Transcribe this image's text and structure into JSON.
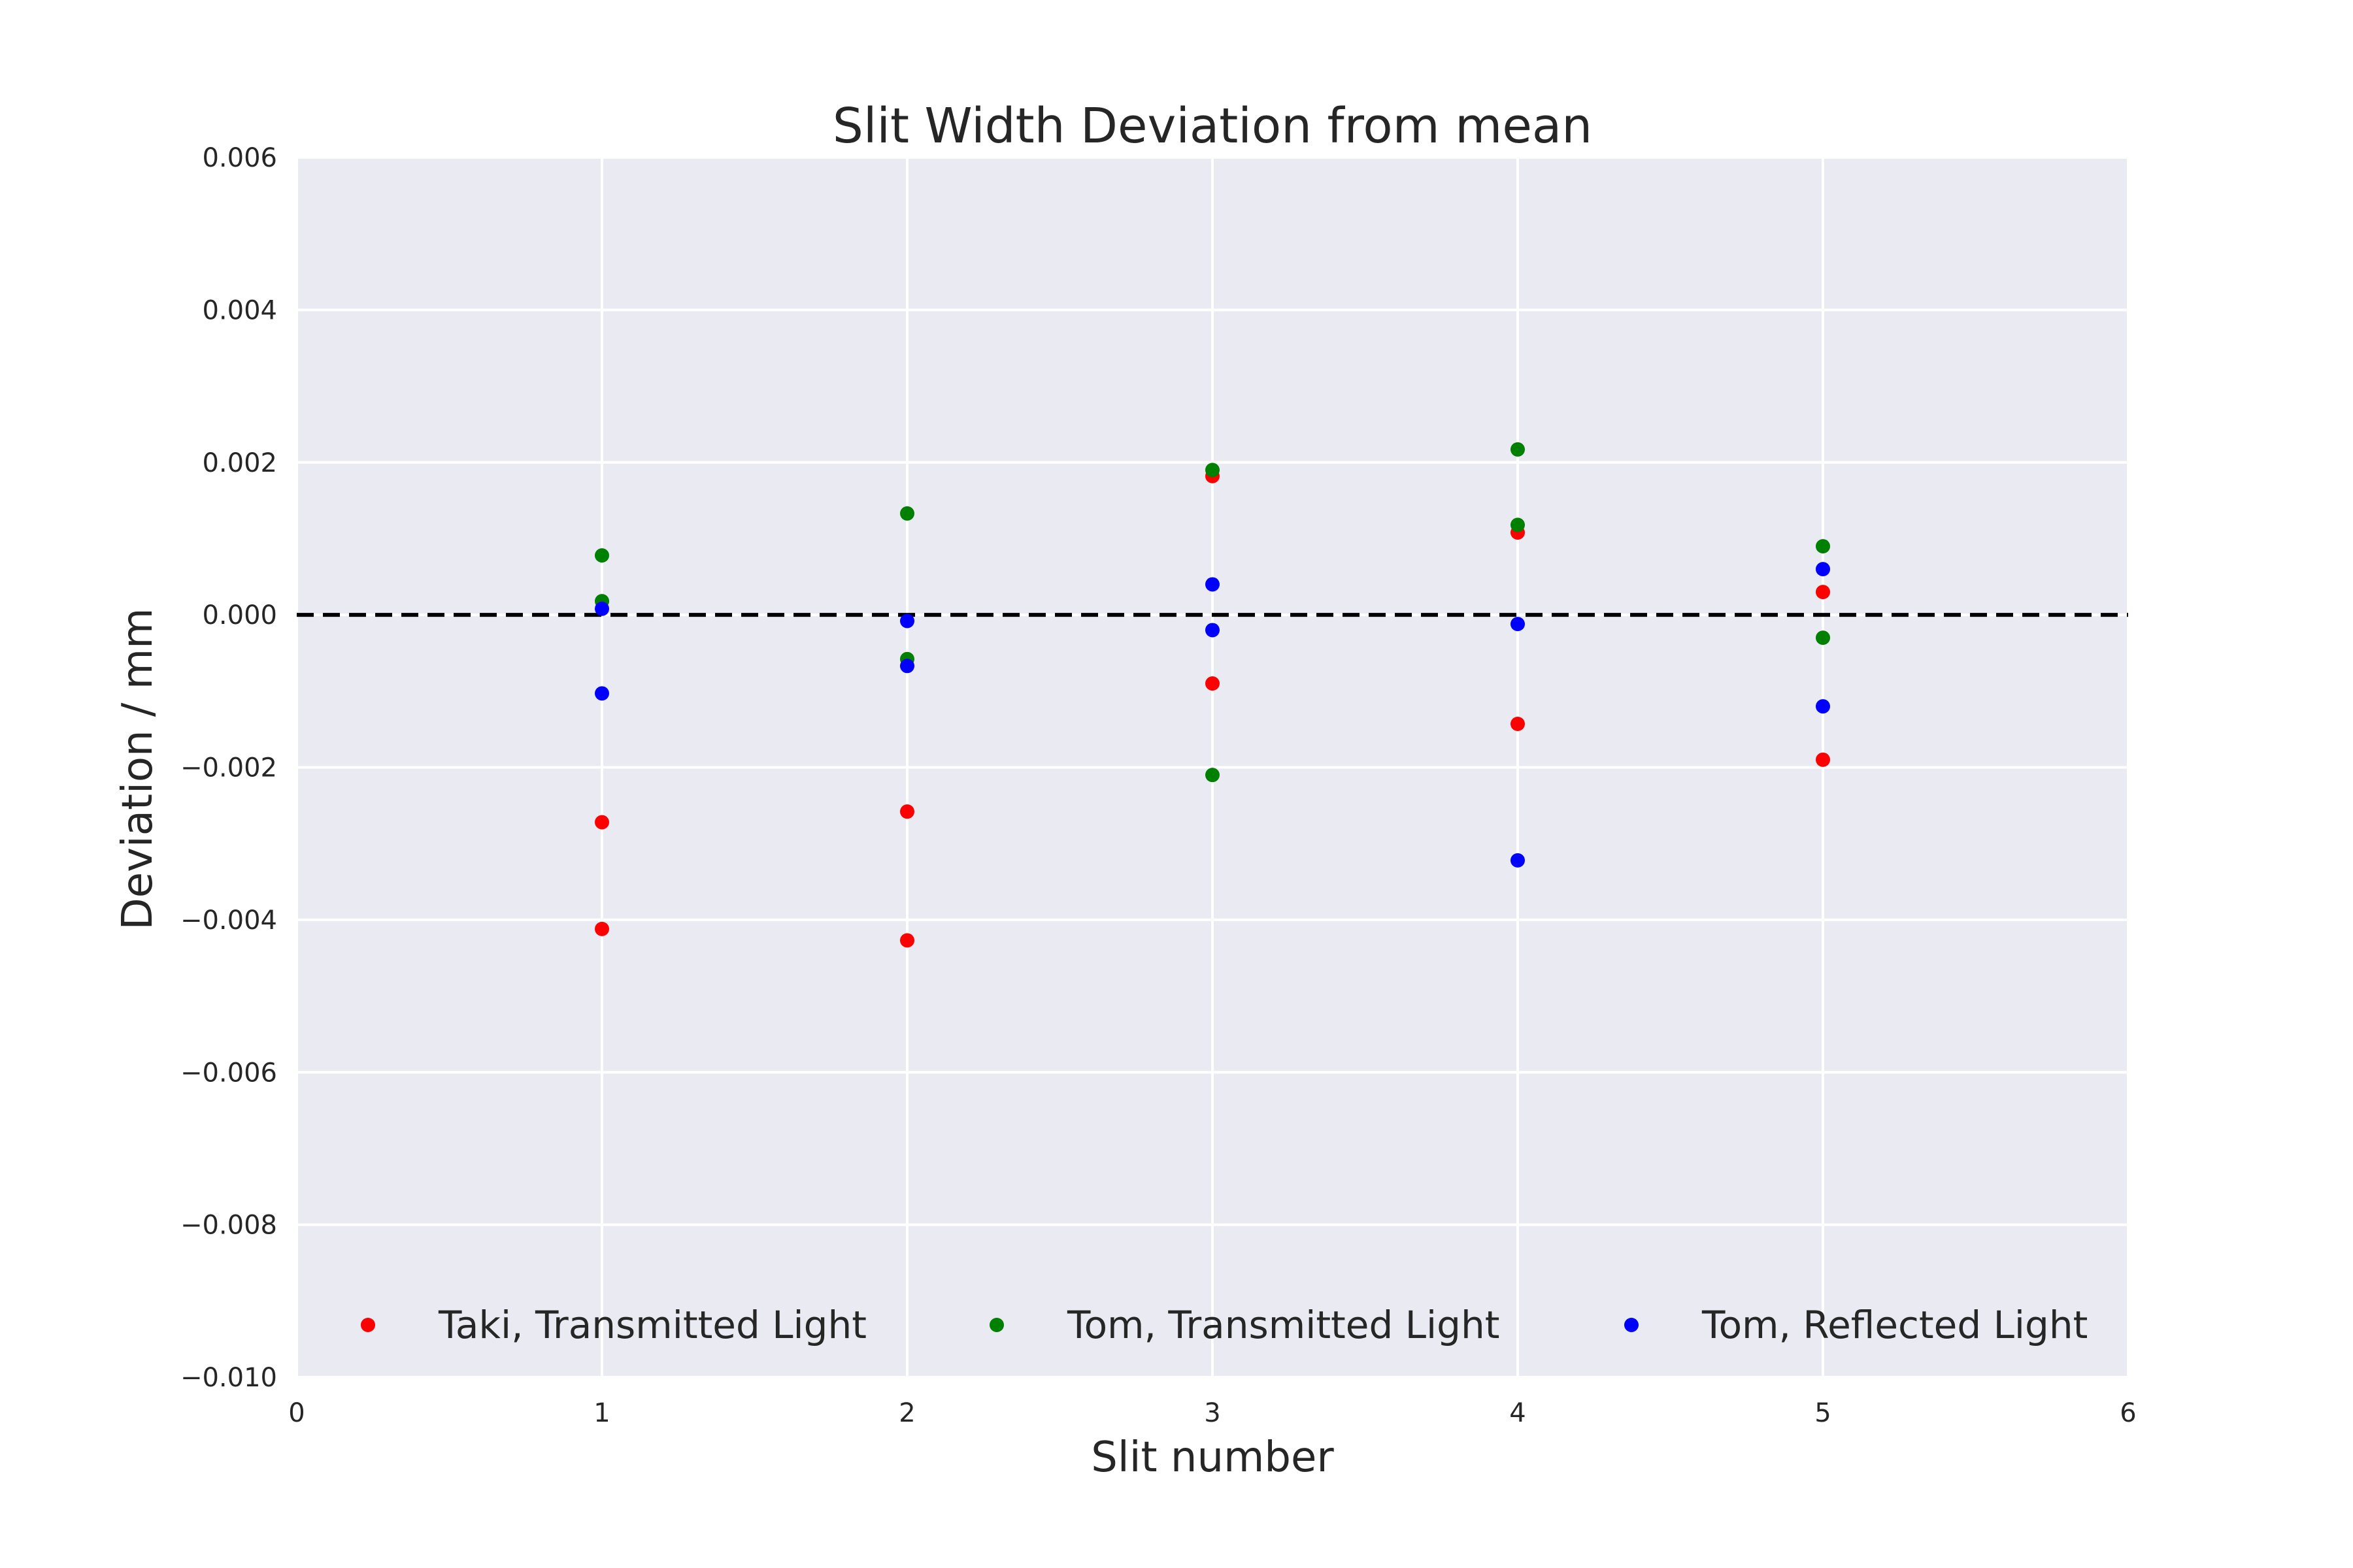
{
  "chart_data": {
    "type": "scatter",
    "title": "Slit Width Deviation from mean",
    "xlabel": "Slit number",
    "ylabel": "Deviation / mm",
    "xlim": [
      0,
      6
    ],
    "ylim": [
      -0.01,
      0.006
    ],
    "x_ticks": [
      {
        "value": 0,
        "label": "0"
      },
      {
        "value": 1,
        "label": "1"
      },
      {
        "value": 2,
        "label": "2"
      },
      {
        "value": 3,
        "label": "3"
      },
      {
        "value": 4,
        "label": "4"
      },
      {
        "value": 5,
        "label": "5"
      },
      {
        "value": 6,
        "label": "6"
      }
    ],
    "y_ticks": [
      {
        "value": -0.01,
        "label": "−0.010"
      },
      {
        "value": -0.008,
        "label": "−0.008"
      },
      {
        "value": -0.006,
        "label": "−0.006"
      },
      {
        "value": -0.004,
        "label": "−0.004"
      },
      {
        "value": -0.002,
        "label": "−0.002"
      },
      {
        "value": 0.0,
        "label": "0.000"
      },
      {
        "value": 0.002,
        "label": "0.002"
      },
      {
        "value": 0.004,
        "label": "0.004"
      },
      {
        "value": 0.006,
        "label": "0.006"
      }
    ],
    "grid": true,
    "background_color": "#eaeaf2",
    "grid_color": "#ffffff",
    "reference_line": {
      "y": 0,
      "style": "dashed",
      "color": "#000000"
    },
    "legend_position": "lower-center",
    "series": [
      {
        "name": "Taki, Transmitted Light",
        "color": "#ff0000",
        "points": [
          {
            "x": 1,
            "y": -0.00272
          },
          {
            "x": 1,
            "y": -0.00412
          },
          {
            "x": 2,
            "y": -0.00258
          },
          {
            "x": 2,
            "y": -0.00427
          },
          {
            "x": 3,
            "y": 0.00182
          },
          {
            "x": 3,
            "y": -0.0009
          },
          {
            "x": 4,
            "y": 0.00108
          },
          {
            "x": 4,
            "y": -0.00143
          },
          {
            "x": 5,
            "y": 0.0003
          },
          {
            "x": 5,
            "y": -0.0019
          }
        ]
      },
      {
        "name": "Tom, Transmitted Light",
        "color": "#008000",
        "points": [
          {
            "x": 1,
            "y": 0.00078
          },
          {
            "x": 1,
            "y": 0.00018
          },
          {
            "x": 2,
            "y": 0.00133
          },
          {
            "x": 2,
            "y": -0.00058
          },
          {
            "x": 3,
            "y": 0.0019
          },
          {
            "x": 3,
            "y": -0.0021
          },
          {
            "x": 4,
            "y": 0.00217
          },
          {
            "x": 4,
            "y": 0.00118
          },
          {
            "x": 5,
            "y": 0.0009
          },
          {
            "x": 5,
            "y": -0.0003
          }
        ]
      },
      {
        "name": "Tom, Reflected Light",
        "color": "#0000ff",
        "points": [
          {
            "x": 1,
            "y": 8e-05
          },
          {
            "x": 1,
            "y": -0.00103
          },
          {
            "x": 2,
            "y": -8e-05
          },
          {
            "x": 2,
            "y": -0.00067
          },
          {
            "x": 3,
            "y": 0.0004
          },
          {
            "x": 3,
            "y": -0.0002
          },
          {
            "x": 4,
            "y": -0.00012
          },
          {
            "x": 4,
            "y": -0.00322
          },
          {
            "x": 5,
            "y": 0.0006
          },
          {
            "x": 5,
            "y": -0.0012
          }
        ]
      }
    ]
  }
}
